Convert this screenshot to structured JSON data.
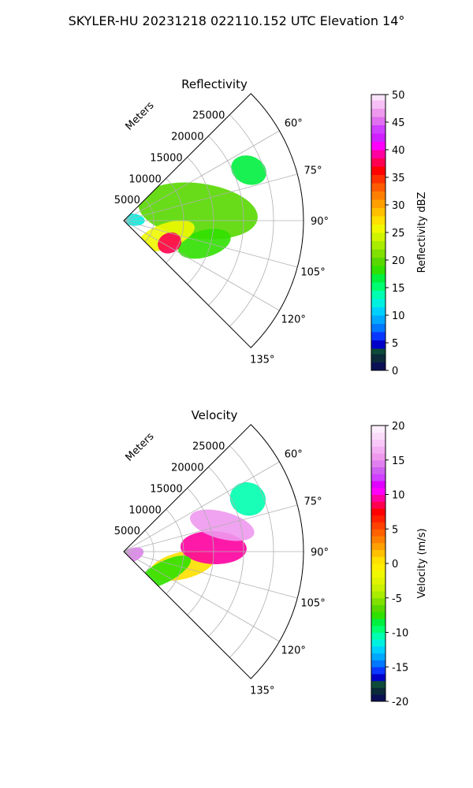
{
  "suptitle": "SKYLER-HU  20231218  022110.152 UTC Elevation 14°",
  "chart_data": [
    {
      "type": "heatmap",
      "title": "Reflectivity",
      "projection": "polar sector",
      "radial_label": "Meters",
      "radial_ticks": [
        "5000",
        "10000",
        "15000",
        "20000",
        "25000"
      ],
      "radial_range": [
        0,
        30000
      ],
      "angle_ticks": [
        "60°",
        "75°",
        "90°",
        "105°",
        "120°",
        "135°"
      ],
      "angle_range_deg": [
        45,
        135
      ],
      "grid": true,
      "colorbar": {
        "label": "Reflectivity dBZ",
        "ticks": [
          "0",
          "5",
          "10",
          "15",
          "20",
          "25",
          "30",
          "35",
          "40",
          "45",
          "50"
        ],
        "range": [
          0,
          50
        ]
      },
      "features": [
        {
          "range_m": [
            0,
            3000
          ],
          "angle_deg": [
            75,
            92
          ],
          "value": 12
        },
        {
          "range_m": [
            3000,
            22000
          ],
          "angle_deg": [
            65,
            100
          ],
          "value": 20
        },
        {
          "range_m": [
            10000,
            18000
          ],
          "angle_deg": [
            100,
            112
          ],
          "value": 18
        },
        {
          "range_m": [
            3000,
            12000
          ],
          "angle_deg": [
            100,
            120
          ],
          "value": 26
        },
        {
          "range_m": [
            7000,
            10000
          ],
          "angle_deg": [
            110,
            122
          ],
          "value": 37
        },
        {
          "range_m": [
            20000,
            25000
          ],
          "angle_deg": [
            64,
            72
          ],
          "value": 17
        }
      ]
    },
    {
      "type": "heatmap",
      "title": "Velocity",
      "projection": "polar sector",
      "radial_label": "Meters",
      "radial_ticks": [
        "5000",
        "10000",
        "15000",
        "20000",
        "25000"
      ],
      "radial_range": [
        0,
        30000
      ],
      "angle_ticks": [
        "60°",
        "75°",
        "90°",
        "105°",
        "120°",
        "135°"
      ],
      "angle_range_deg": [
        45,
        135
      ],
      "grid": true,
      "colorbar": {
        "label": "Velocity (m/s)",
        "ticks": [
          "-20",
          "-15",
          "-10",
          "-5",
          "0",
          "5",
          "10",
          "15",
          "20"
        ],
        "range": [
          -20,
          20
        ]
      },
      "features": [
        {
          "range_m": [
            5000,
            15000
          ],
          "angle_deg": [
            95,
            112
          ],
          "value": 0
        },
        {
          "range_m": [
            10000,
            20000
          ],
          "angle_deg": [
            80,
            95
          ],
          "value": 9
        },
        {
          "range_m": [
            12000,
            22000
          ],
          "angle_deg": [
            70,
            80
          ],
          "value": 15
        },
        {
          "range_m": [
            20000,
            25000
          ],
          "angle_deg": [
            62,
            72
          ],
          "value": -11
        },
        {
          "range_m": [
            3000,
            12000
          ],
          "angle_deg": [
            110,
            125
          ],
          "value": -8
        },
        {
          "range_m": [
            0,
            3000
          ],
          "angle_deg": [
            100,
            125
          ],
          "value": 14
        }
      ]
    }
  ]
}
